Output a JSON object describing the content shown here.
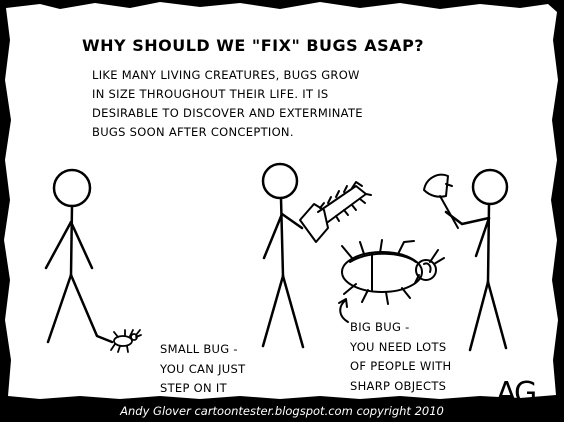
{
  "comic": {
    "title": "WHY SHOULD WE \"FIX\" BUGS ASAP?",
    "intro_lines": [
      "LIKE MANY LIVING CREATURES, BUGS GROW",
      "IN SIZE THROUGHOUT THEIR LIFE. IT IS",
      "DESIRABLE TO DISCOVER AND EXTERMINATE",
      "BUGS SOON AFTER CONCEPTION."
    ],
    "small_bug_caption": [
      "SMALL BUG -",
      "YOU CAN JUST",
      "STEP ON IT"
    ],
    "big_bug_caption": [
      "BIG BUG -",
      "YOU NEED LOTS",
      "OF PEOPLE WITH",
      "SHARP OBJECTS"
    ],
    "signature": "AG",
    "credit": "Andy Glover cartoontester.blogspot.com copyright 2010"
  },
  "colors": {
    "paper": "#ffffff",
    "ink": "#000000",
    "border": "#000000",
    "credit_text": "#ffffff"
  }
}
